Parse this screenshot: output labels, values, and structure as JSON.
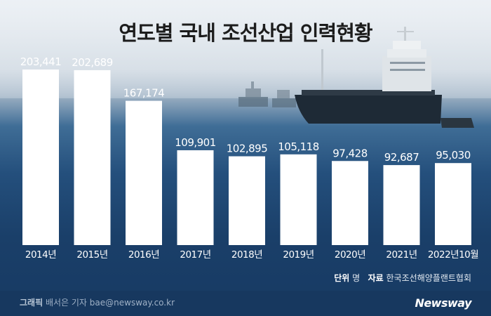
{
  "title": "연도별 국내 조선산업 인력현황",
  "unit_label": "단위",
  "unit_value": "명",
  "source_label": "자료",
  "source_value": "한국조선해양플랜트협회",
  "credit_label": "그래픽",
  "credit_name": "배서은 기자",
  "credit_email": "bae@newsway.co.kr",
  "logo": "Newsway",
  "chart_data": {
    "type": "bar",
    "title": "연도별 국내 조선산업 인력현황",
    "categories": [
      "2014년",
      "2015년",
      "2016년",
      "2017년",
      "2018년",
      "2019년",
      "2020년",
      "2021년",
      "2022년10월"
    ],
    "values": [
      203441,
      202689,
      167174,
      109901,
      102895,
      105118,
      97428,
      92687,
      95030
    ],
    "labels": [
      "203,441",
      "202,689",
      "167,174",
      "109,901",
      "102,895",
      "105,118",
      "97,428",
      "92,687",
      "95,030"
    ],
    "bar_color": "#ffffff",
    "ylim": [
      0,
      203441
    ],
    "grid": false,
    "legend": "none"
  }
}
